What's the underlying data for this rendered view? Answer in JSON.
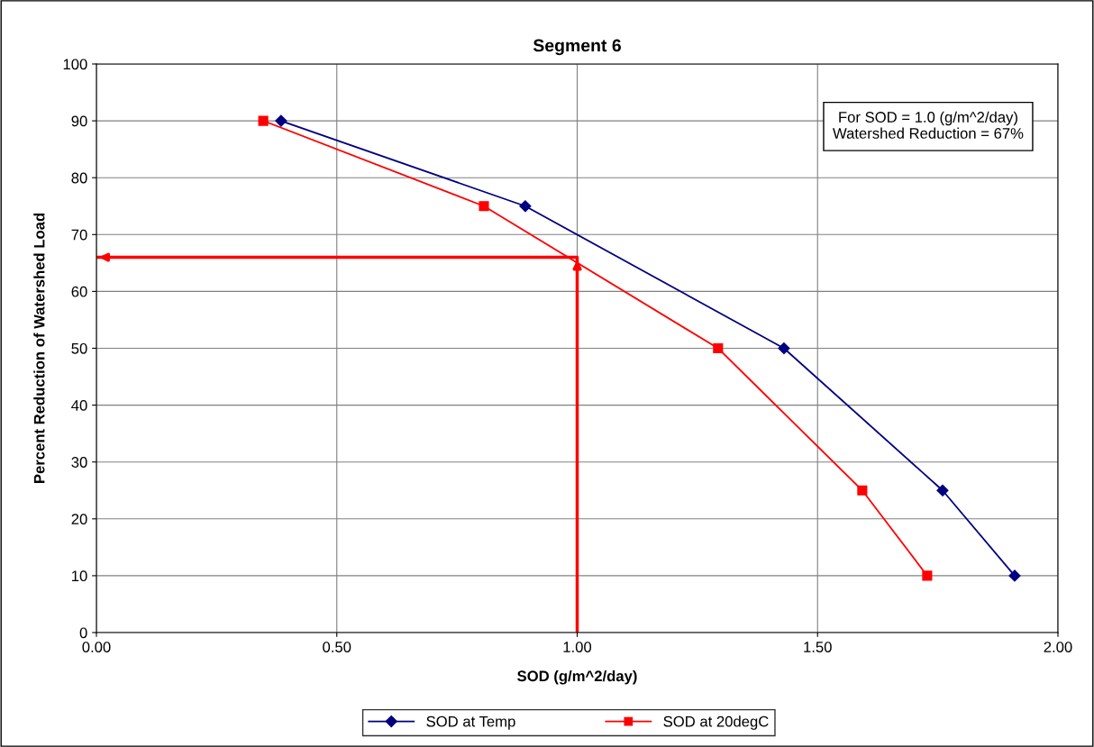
{
  "chart_data": {
    "type": "line",
    "title": "Segment 6",
    "xlabel": "SOD (g/m^2/day)",
    "ylabel": "Percent Reduction of Watershed Load",
    "xlim": [
      0,
      2
    ],
    "xticks": [
      {
        "value": 0,
        "label": "0.00"
      },
      {
        "value": 0.5,
        "label": "0.50"
      },
      {
        "value": 1,
        "label": "1.00"
      },
      {
        "value": 1.5,
        "label": "1.50"
      },
      {
        "value": 2,
        "label": "2.00"
      }
    ],
    "ylim": [
      0,
      100
    ],
    "yticks": [
      0,
      10,
      20,
      30,
      40,
      50,
      60,
      70,
      80,
      90,
      100
    ],
    "grid": true,
    "legend": "bottom",
    "annotations": [
      "For SOD = 1.0 (g/m^2/day)\nWatershed Reduction = 67%"
    ],
    "series": [
      {
        "name": "SOD at Temp",
        "color": "#000080",
        "marker": "diamond",
        "x": [
          0.384,
          0.892,
          1.43,
          1.76,
          1.91
        ],
        "values": [
          90,
          75,
          50,
          25,
          10
        ]
      },
      {
        "name": "SOD at 20degC",
        "color": "#ff0000",
        "marker": "square",
        "x": [
          0.347,
          0.806,
          1.293,
          1.593,
          1.728
        ],
        "values": [
          90,
          75,
          50,
          25,
          10
        ]
      },
      {
        "color": "#ff0000",
        "marker": "none",
        "x": [
          1.0,
          1.0,
          0.0
        ],
        "values": [
          0,
          66,
          66
        ]
      }
    ]
  }
}
